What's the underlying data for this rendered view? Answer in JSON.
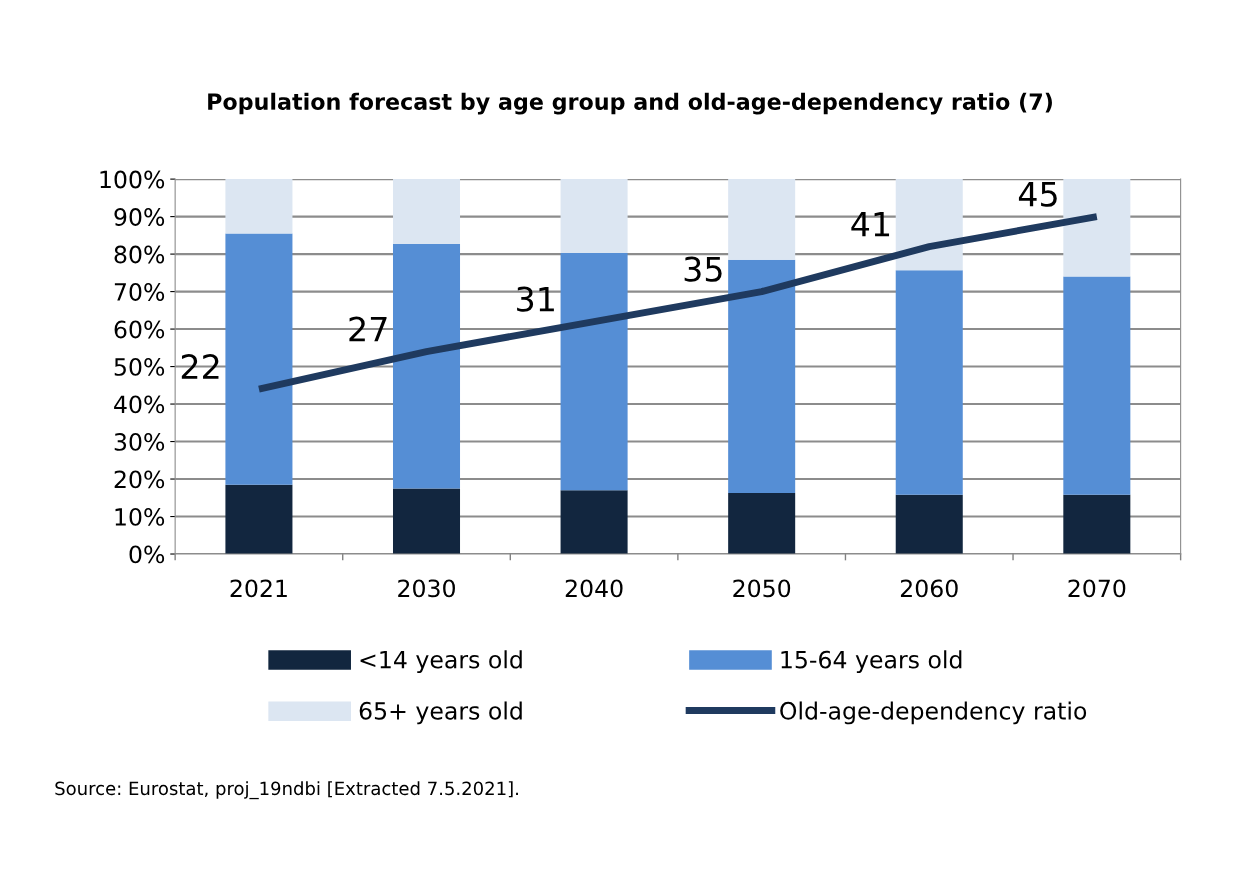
{
  "chart_data": {
    "type": "bar",
    "stacked": true,
    "title": "Population forecast by age group and old-age-dependency ratio (7)",
    "categories": [
      "2021",
      "2030",
      "2040",
      "2050",
      "2060",
      "2070"
    ],
    "series": [
      {
        "name": "<14 years old",
        "color": "#12263f",
        "values": [
          18.5,
          17.5,
          17,
          16.3,
          15.8,
          15.8
        ]
      },
      {
        "name": "15-64 years old",
        "color": "#558ed5",
        "values": [
          67,
          65.2,
          63.3,
          62.2,
          59.9,
          58.2
        ]
      },
      {
        "name": "65+ years old",
        "color": "#dce6f2",
        "values": [
          14.5,
          17.3,
          19.7,
          21.5,
          24.3,
          26
        ]
      },
      {
        "name": "Old-age-dependency ratio",
        "type": "line",
        "axis": "y2",
        "color": "#1f3a5f",
        "values": [
          22,
          27,
          31,
          35,
          41,
          45
        ],
        "data_labels": true
      }
    ],
    "ylim": [
      0,
      100
    ],
    "yticks": [
      {
        "value": 0,
        "label": "0%"
      },
      {
        "value": 10,
        "label": "10%"
      },
      {
        "value": 20,
        "label": "20%"
      },
      {
        "value": 30,
        "label": "30%"
      },
      {
        "value": 40,
        "label": "40%"
      },
      {
        "value": 50,
        "label": "50%"
      },
      {
        "value": 60,
        "label": "60%"
      },
      {
        "value": 70,
        "label": "70%"
      },
      {
        "value": 80,
        "label": "80%"
      },
      {
        "value": 90,
        "label": "90%"
      },
      {
        "value": 100,
        "label": "100%"
      }
    ],
    "y2lim": [
      0,
      50
    ],
    "grid": "y",
    "legend": "bottom",
    "marker": "none",
    "annotations": [
      "Source: Eurostat, proj_19ndbi [Extracted 7.5.2021]."
    ]
  }
}
